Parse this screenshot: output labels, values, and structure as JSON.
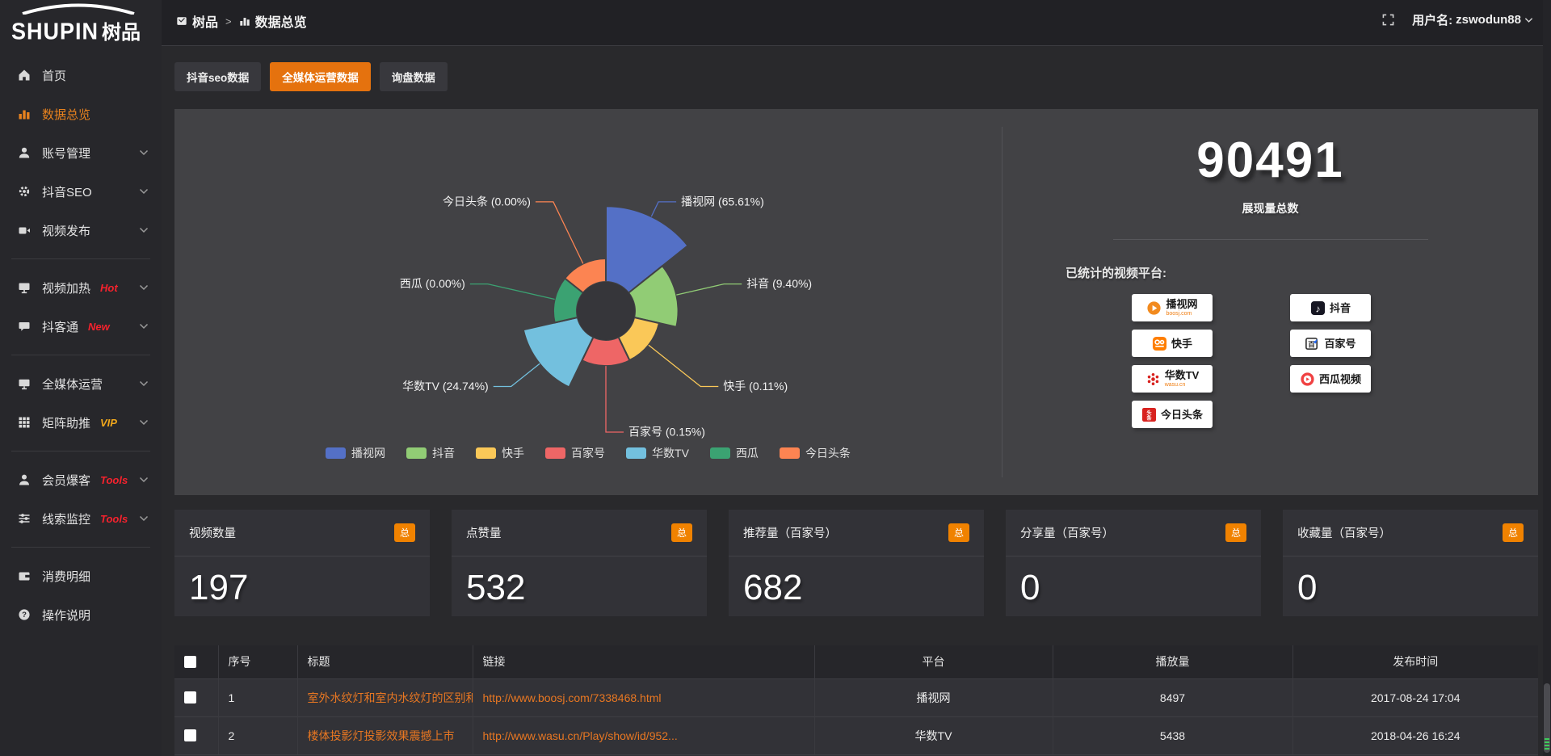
{
  "app": {
    "logo_en": "SHUPIN",
    "logo_cn": "树品"
  },
  "topbar": {
    "breadcrumb": [
      {
        "label": "树品"
      },
      {
        "label": "数据总览"
      }
    ],
    "user_prefix": "用户名:",
    "username": "zswodun88"
  },
  "sidebar": {
    "items": [
      {
        "label": "首页",
        "icon": "home-icon",
        "chevron": false,
        "active": false,
        "badge": "",
        "badge_color": ""
      },
      {
        "label": "数据总览",
        "icon": "bar-chart-icon",
        "chevron": false,
        "active": true,
        "badge": "",
        "badge_color": ""
      },
      {
        "label": "账号管理",
        "icon": "user-icon",
        "chevron": true,
        "active": false,
        "badge": "",
        "badge_color": ""
      },
      {
        "label": "抖音SEO",
        "icon": "gear-icon",
        "chevron": true,
        "active": false,
        "badge": "",
        "badge_color": ""
      },
      {
        "label": "视频发布",
        "icon": "video-icon",
        "chevron": true,
        "active": false,
        "badge": "",
        "badge_color": "",
        "divider_after": true
      },
      {
        "label": "视频加热",
        "icon": "screen-icon",
        "chevron": true,
        "active": false,
        "badge": "Hot",
        "badge_color": "#f5222d"
      },
      {
        "label": "抖客通",
        "icon": "chat-icon",
        "chevron": true,
        "active": false,
        "badge": "New",
        "badge_color": "#f5222d",
        "divider_after": true
      },
      {
        "label": "全媒体运营",
        "icon": "monitor-icon",
        "chevron": true,
        "active": false,
        "badge": "",
        "badge_color": ""
      },
      {
        "label": "矩阵助推",
        "icon": "grid-icon",
        "chevron": true,
        "active": false,
        "badge": "VIP",
        "badge_color": "#f0a71c",
        "divider_after": true
      },
      {
        "label": "会员爆客",
        "icon": "member-icon",
        "chevron": true,
        "active": false,
        "badge": "Tools",
        "badge_color": "#f5222d"
      },
      {
        "label": "线索监控",
        "icon": "sliders-icon",
        "chevron": true,
        "active": false,
        "badge": "Tools",
        "badge_color": "#f5222d",
        "divider_after": true
      },
      {
        "label": "消费明细",
        "icon": "wallet-icon",
        "chevron": false,
        "active": false,
        "badge": "",
        "badge_color": ""
      },
      {
        "label": "操作说明",
        "icon": "help-icon",
        "chevron": false,
        "active": false,
        "badge": "",
        "badge_color": ""
      }
    ]
  },
  "tabs": [
    {
      "label": "抖音seo数据",
      "active": false
    },
    {
      "label": "全媒体运营数据",
      "active": true
    },
    {
      "label": "询盘数据",
      "active": false
    }
  ],
  "chart_data": {
    "type": "pie",
    "rose": true,
    "legend_position": "bottom",
    "items": [
      {
        "name": "播视网",
        "pct": 65.61,
        "color": "#5470c6"
      },
      {
        "name": "抖音",
        "pct": 9.4,
        "color": "#91cc75"
      },
      {
        "name": "快手",
        "pct": 0.11,
        "color": "#fac858"
      },
      {
        "name": "百家号",
        "pct": 0.15,
        "color": "#ee6666"
      },
      {
        "name": "华数TV",
        "pct": 24.74,
        "color": "#73c0de"
      },
      {
        "name": "西瓜",
        "pct": 0.0,
        "color": "#3ba272"
      },
      {
        "name": "今日头条",
        "pct": 0.0,
        "color": "#fc8452"
      }
    ]
  },
  "summary": {
    "total_value": "90491",
    "total_label": "展现量总数",
    "platforms_label": "已统计的视频平台:",
    "platform_cols": [
      [
        {
          "name": "播视网",
          "sub": "boosj.com",
          "icon": "boosj-logo"
        },
        {
          "name": "快手",
          "sub": "",
          "icon": "kuaishou-logo"
        },
        {
          "name": "华数TV",
          "sub": "wasu.cn",
          "icon": "wasu-logo"
        },
        {
          "name": "今日头条",
          "sub": "",
          "icon": "toutiao-logo"
        }
      ],
      [
        {
          "name": "抖音",
          "sub": "",
          "icon": "douyin-logo"
        },
        {
          "name": "百家号",
          "sub": "",
          "icon": "baijiahao-logo"
        },
        {
          "name": "西瓜视频",
          "sub": "",
          "icon": "xigua-logo"
        }
      ]
    ]
  },
  "stat_cards": [
    {
      "label": "视频数量",
      "badge": "总",
      "value": "197"
    },
    {
      "label": "点赞量",
      "badge": "总",
      "value": "532"
    },
    {
      "label": "推荐量（百家号）",
      "badge": "总",
      "value": "682"
    },
    {
      "label": "分享量（百家号）",
      "badge": "总",
      "value": "0"
    },
    {
      "label": "收藏量（百家号）",
      "badge": "总",
      "value": "0"
    }
  ],
  "table": {
    "columns": [
      "",
      "序号",
      "标题",
      "链接",
      "平台",
      "播放量",
      "发布时间"
    ],
    "rows": [
      {
        "no": "1",
        "title": "室外水纹灯和室内水纹灯的区别和简介",
        "url": "http://www.boosj.com/7338468.html",
        "platform": "播视网",
        "plays": "8497",
        "published": "2017-08-24 17:04"
      },
      {
        "no": "2",
        "title": "楼体投影灯投影效果震撼上市",
        "url": "http://www.wasu.cn/Play/show/id/952...",
        "platform": "华数TV",
        "plays": "5438",
        "published": "2018-04-26 16:24"
      }
    ]
  },
  "colors": {
    "accent": "#e5720e",
    "badge": "#f08200",
    "link": "#e87722",
    "active_menu": "#e8821e"
  }
}
